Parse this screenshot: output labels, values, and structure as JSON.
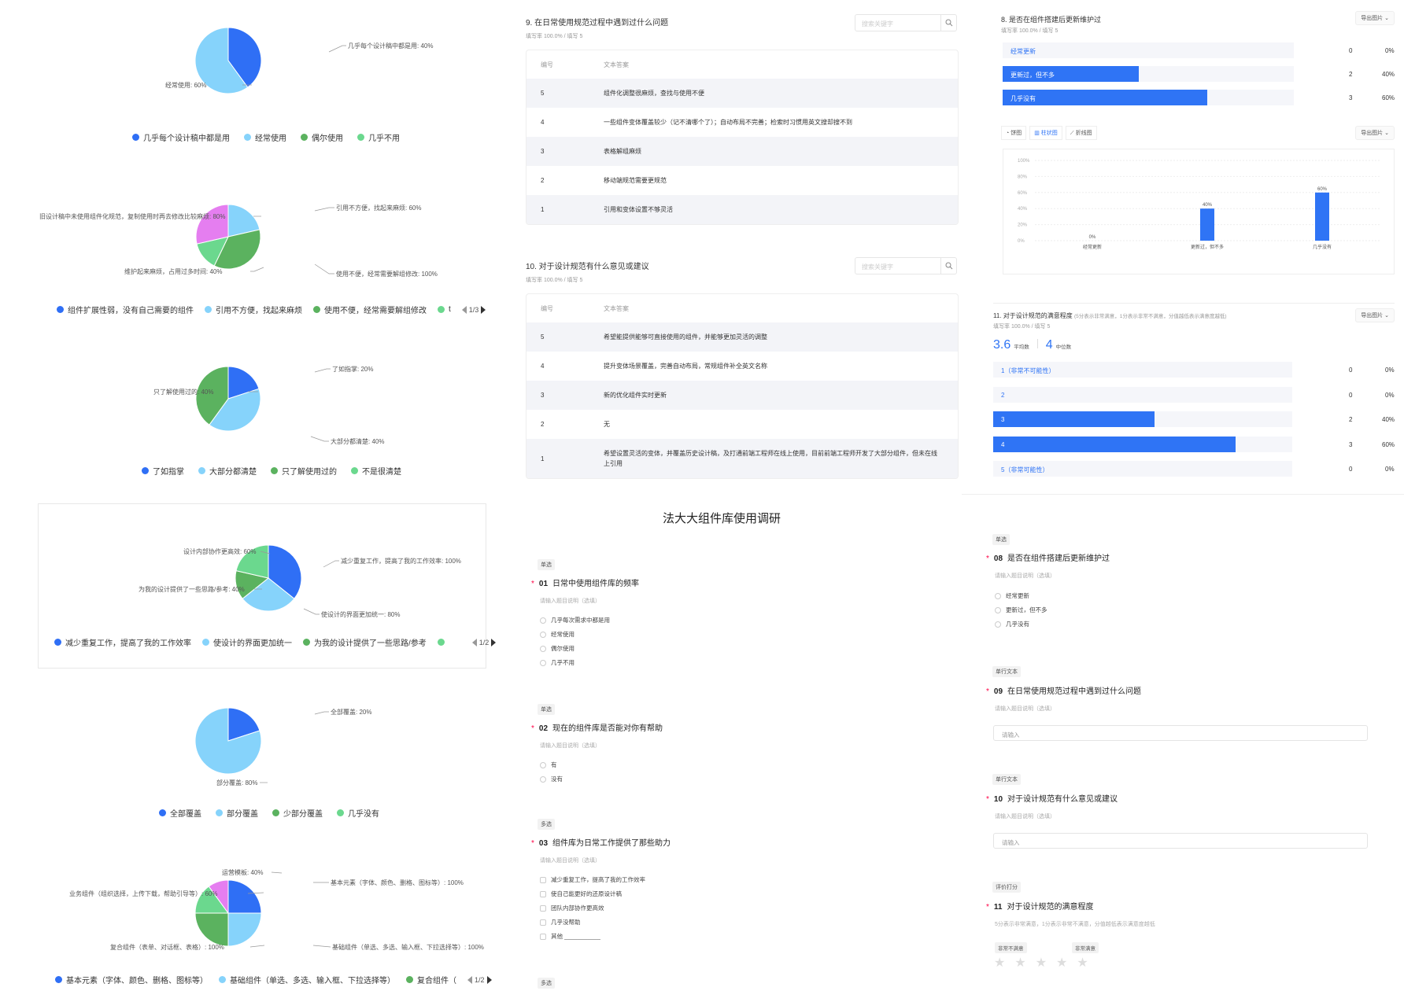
{
  "pies": [
    {
      "legend": [
        "几乎每个设计稿中都是用",
        "经常使用",
        "偶尔使用",
        "几乎不用"
      ],
      "labels": [
        "几乎每个设计稿中都是用: 40%",
        "经常使用: 60%"
      ],
      "pager": ""
    },
    {
      "legend": [
        "组件扩展性弱，没有自己需要的组件",
        "引用不方便，找起来麻烦",
        "使用不便，经常需要解组修改",
        "t"
      ],
      "labels": [
        "引用不方便，找起来麻烦: 60%",
        "使用不便，经常需要解组修改: 100%",
        "维护起来麻烦，占用过多时间: 40%",
        "旧设计稿中未使用组件化规范，复制使用时再去修改比较麻烦: 80%"
      ],
      "pager": "1/3"
    },
    {
      "legend": [
        "了如指掌",
        "大部分都清楚",
        "只了解使用过的",
        "不是很清楚"
      ],
      "labels": [
        "了如指掌: 20%",
        "大部分都清楚: 40%",
        "只了解使用过的: 40%"
      ],
      "pager": ""
    },
    {
      "legend": [
        "减少重复工作，提高了我的工作效率",
        "使设计的界面更加统一",
        "为我的设计提供了一些思路/参考",
        ""
      ],
      "labels": [
        "减少重复工作，提高了我的工作效率: 100%",
        "使设计的界面更加统一: 80%",
        "为我的设计提供了一些思路/参考: 40%",
        "设计内部协作更高效: 60%"
      ],
      "pager": "1/2"
    },
    {
      "legend": [
        "全部覆盖",
        "部分覆盖",
        "少部分覆盖",
        "几乎没有"
      ],
      "labels": [
        "全部覆盖: 20%",
        "部分覆盖: 80%"
      ],
      "pager": ""
    },
    {
      "legend": [
        "基本元素（字体、颜色、删格、图标等）",
        "基础组件（单选、多选、输入框、下拉选择等）",
        "复合组件（",
        ""
      ],
      "labels": [
        "基本元素（字体、颜色、删格、图标等）: 100%",
        "基础组件（单选、多选、输入框、下拉选择等）: 100%",
        "复合组件（表单、对话框、表格）: 100%",
        "业务组件（组织选择，上传下载，帮助引导等）: 60%",
        "运营模板: 40%"
      ],
      "pager": "1/2"
    }
  ],
  "colors": {
    "blue": "#2f6ff5",
    "lightblue": "#86d3fb",
    "green": "#5bb25f",
    "lightgreen": "#6bd88e",
    "pink": "#e57ef0"
  },
  "q9": {
    "title": "9. 在日常使用规范过程中遇到过什么问题",
    "sub": "填写率 100.0% / 填写 5",
    "search_placeholder": "搜索关键字",
    "head": [
      "编号",
      "文本答案"
    ],
    "rows": [
      [
        "5",
        "组件化调整很麻烦，查找与使用不便"
      ],
      [
        "4",
        "一些组件变体覆盖较少（记不清哪个了）；自动布局不完善；检索时习惯用英文搜却搜不到"
      ],
      [
        "3",
        "表格解组麻烦"
      ],
      [
        "2",
        "移动端规范需要更规范"
      ],
      [
        "1",
        "引用和变体设置不够灵活"
      ]
    ]
  },
  "q10": {
    "title": "10. 对于设计规范有什么意见或建议",
    "sub": "填写率 100.0% / 填写 5",
    "search_placeholder": "搜索关键字",
    "head": [
      "编号",
      "文本答案"
    ],
    "rows": [
      [
        "5",
        "希望能提供能够可直接使用的组件，并能够更加灵活的调整"
      ],
      [
        "4",
        "提升变体场景覆盖，完善自动布局，常规组件补全英文名称"
      ],
      [
        "3",
        "新的优化组件实时更新"
      ],
      [
        "2",
        "无"
      ],
      [
        "1",
        "希望设置灵活的变体，并覆盖历史设计稿，及打通前端工程师在线上使用，目前前端工程师开发了大部分组件，但未在线上引用"
      ]
    ]
  },
  "q8": {
    "title": "8. 是否在组件搭建后更新维护过",
    "sub": "填写率 100.0% / 填写 5",
    "export": "导出图片 ⌄",
    "rows": [
      {
        "label": "经常更新",
        "count": "0",
        "pct": "0%",
        "value": 0
      },
      {
        "label": "更新过，但不多",
        "count": "2",
        "pct": "40%",
        "value": 0.4
      },
      {
        "label": "几乎没有",
        "count": "3",
        "pct": "60%",
        "value": 0.6
      }
    ],
    "tabs": [
      "饼图",
      "柱状图",
      "折线图"
    ],
    "chart_export": "导出图片 ⌄"
  },
  "chart_data": {
    "type": "bar",
    "categories": [
      "经常更新",
      "更新过，但不多",
      "几乎没有"
    ],
    "values": [
      0,
      40,
      60
    ],
    "value_labels": [
      "0%",
      "40%",
      "60%"
    ],
    "yticks": [
      "100%",
      "80%",
      "60%",
      "40%",
      "20%",
      "0%"
    ],
    "ylim": [
      0,
      100
    ],
    "grid": true
  },
  "q11": {
    "title": "11. 对于设计规范的满意程度",
    "hint": "(5分表示非常满意，1分表示非常不满意，分值越低表示满意度越低)",
    "sub": "填写率 100.0% / 填写 5",
    "avg": "3.6",
    "avg_label": "平均数",
    "median": "4",
    "median_label": "中位数",
    "export": "导出图片 ⌄",
    "rows": [
      {
        "label": "1（非常不可能性）",
        "count": "0",
        "pct": "0%",
        "value": 0
      },
      {
        "label": "2",
        "count": "0",
        "pct": "0%",
        "value": 0
      },
      {
        "label": "3",
        "count": "2",
        "pct": "40%",
        "value": 0.4
      },
      {
        "label": "4",
        "count": "3",
        "pct": "60%",
        "value": 0.6
      },
      {
        "label": "5（非常可能性）",
        "count": "0",
        "pct": "0%",
        "value": 0
      }
    ]
  },
  "form": {
    "title": "法大大组件库使用调研",
    "desc": "请输入题目说明（选填）",
    "q1": {
      "tag": "单选",
      "num": "01",
      "text": "日常中使用组件库的频率",
      "options": [
        "几乎每次需求中都是用",
        "经常使用",
        "偶尔使用",
        "几乎不用"
      ]
    },
    "q2": {
      "tag": "单选",
      "num": "02",
      "text": "现在的组件库是否能对你有帮助",
      "options": [
        "有",
        "没有"
      ]
    },
    "q3": {
      "tag": "多选",
      "num": "03",
      "text": "组件库为日常工作提供了那些助力",
      "options": [
        "减少重复工作，提高了我的工作效率",
        "使自己能更好的还原设计稿",
        "团队内部协作更高效",
        "几乎没帮助",
        "其他 ___________"
      ]
    },
    "q4_tag": "多选",
    "q8": {
      "tag": "单选",
      "num": "08",
      "text": "是否在组件搭建后更新维护过",
      "options": [
        "经常更新",
        "更新过，但不多",
        "几乎没有"
      ]
    },
    "q9": {
      "tag": "单行文本",
      "num": "09",
      "text": "在日常使用规范过程中遇到过什么问题",
      "placeholder": "请输入"
    },
    "q10": {
      "tag": "单行文本",
      "num": "10",
      "text": "对于设计规范有什么意见或建议",
      "placeholder": "请输入"
    },
    "q11": {
      "tag": "评价打分",
      "num": "11",
      "text": "对于设计规范的满意程度",
      "note": "5分表示非常满意，1分表示非常不满意，分值越低表示满意度越低",
      "low": "非常不满意",
      "high": "非常满意"
    }
  }
}
